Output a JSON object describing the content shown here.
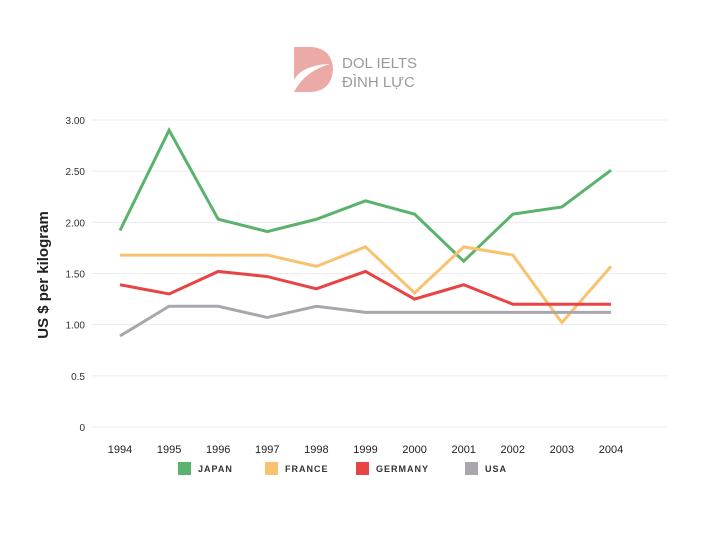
{
  "logo": {
    "line1": "DOL IELTS",
    "line2": "ĐÌNH LỰC"
  },
  "chart_data": {
    "type": "line",
    "title": "",
    "xlabel": "",
    "ylabel": "US $ per kilogram",
    "x": [
      "1994",
      "1995",
      "1996",
      "1997",
      "1998",
      "1999",
      "2000",
      "2001",
      "2002",
      "2003",
      "2004"
    ],
    "yticks": [
      "0",
      "0.5",
      "1.00",
      "1.50",
      "2.00",
      "2.50",
      "3.00"
    ],
    "ylim": [
      0,
      3
    ],
    "grid": true,
    "legend_position": "bottom",
    "series": [
      {
        "name": "JAPAN",
        "color": "#5bb26d",
        "values": [
          1.92,
          2.9,
          2.03,
          1.91,
          2.03,
          2.21,
          2.08,
          1.62,
          2.08,
          2.15,
          2.51
        ]
      },
      {
        "name": "FRANCE",
        "color": "#f9c26e",
        "values": [
          1.68,
          1.68,
          1.68,
          1.68,
          1.57,
          1.76,
          1.31,
          1.76,
          1.68,
          1.02,
          1.57
        ]
      },
      {
        "name": "GERMANY",
        "color": "#e84444",
        "values": [
          1.39,
          1.3,
          1.52,
          1.47,
          1.35,
          1.52,
          1.25,
          1.39,
          1.2,
          1.2,
          1.2
        ]
      },
      {
        "name": "USA",
        "color": "#a9a7ad",
        "values": [
          0.89,
          1.18,
          1.18,
          1.07,
          1.18,
          1.12,
          1.12,
          1.12,
          1.12,
          1.12,
          1.12
        ]
      }
    ]
  }
}
